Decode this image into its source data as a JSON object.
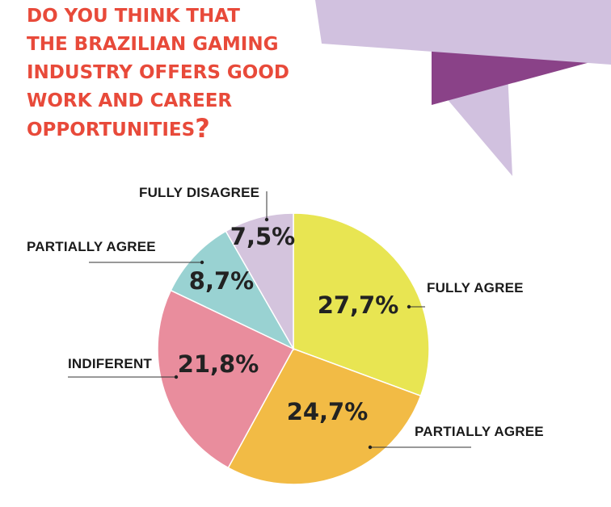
{
  "title": {
    "lines": [
      "DO YOU THINK THAT",
      "THE BRAZILIAN GAMING",
      "INDUSTRY OFFERS GOOD",
      "WORK AND CAREER",
      "OPPORTUNITIES"
    ],
    "question_mark": "?"
  },
  "colors": {
    "title": "#e84a3a",
    "ribbon_light": "#d1c1df",
    "ribbon_dark": "#8a4288",
    "slice_text": "#222222",
    "label_text": "#1a1a1a"
  },
  "chart_data": {
    "type": "pie",
    "title": "DO YOU THINK THAT THE BRAZILIAN GAMING INDUSTRY OFFERS GOOD WORK AND CAREER OPPORTUNITIES?",
    "slices": [
      {
        "category": "FULLY AGREE",
        "value": 27.7,
        "display": "27,7%",
        "color": "#e8e552"
      },
      {
        "category": "PARTIALLY AGREE",
        "value": 24.7,
        "display": "24,7%",
        "color": "#f2bb45"
      },
      {
        "category": "INDIFERENT",
        "value": 21.8,
        "display": "21,8%",
        "color": "#e98d9d"
      },
      {
        "category": "PARTIALLY AGREE",
        "value": 8.7,
        "display": "8,7%",
        "color": "#99d2d2"
      },
      {
        "category": "FULLY DISAGREE",
        "value": 7.5,
        "display": "7,5%",
        "color": "#d4c4dd"
      }
    ]
  }
}
